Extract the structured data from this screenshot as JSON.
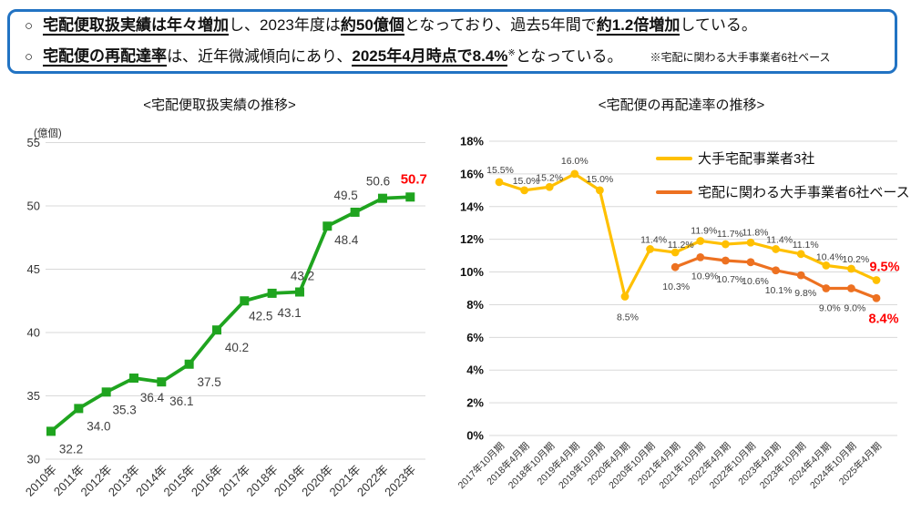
{
  "summary": {
    "bullet": "○",
    "line1_segments": [
      {
        "t": "宅配便取扱実績は年々増加",
        "em": true
      },
      {
        "t": "し、2023年度は",
        "em": false
      },
      {
        "t": "約50億個",
        "em": true
      },
      {
        "t": "となっており、過去5年間で",
        "em": false
      },
      {
        "t": "約1.2倍増加",
        "em": true
      },
      {
        "t": "している。",
        "em": false
      }
    ],
    "line2_segments": [
      {
        "t": "宅配便の再配達率",
        "em": true
      },
      {
        "t": "は、近年微減傾向にあり、",
        "em": false
      },
      {
        "t": "2025年4月時点で8.4%",
        "em": true
      },
      {
        "t": "※",
        "em": false,
        "sup": true
      },
      {
        "t": "となっている。",
        "em": false
      }
    ],
    "note": "※宅配に関わる大手事業者6社ベース"
  },
  "chart_data": [
    {
      "type": "line",
      "title": "<宅配便取扱実績の推移>",
      "y_axis_unit": "(億個)",
      "categories": [
        "2010年",
        "2011年",
        "2012年",
        "2013年",
        "2014年",
        "2015年",
        "2016年",
        "2017年",
        "2018年",
        "2019年",
        "2020年",
        "2021年",
        "2022年",
        "2023年"
      ],
      "series": [
        {
          "color": "#1FA41F",
          "marker": "square",
          "values": [
            32.2,
            34.0,
            35.3,
            36.4,
            36.1,
            37.5,
            40.2,
            42.5,
            43.1,
            43.2,
            48.4,
            49.5,
            50.6,
            50.7
          ]
        }
      ],
      "ylim": [
        30,
        55
      ],
      "ytick_step": 5,
      "ytick_suffix": "",
      "grid": true,
      "x_tick_rotation": -45,
      "data_label_color": "#404040",
      "highlight_last_color": "#FF0000"
    },
    {
      "type": "line",
      "title": "<宅配便の再配達率の推移>",
      "y_axis_unit": "",
      "categories": [
        "2017年10月期",
        "2018年4月期",
        "2018年10月期",
        "2019年4月期",
        "2019年10月期",
        "2020年4月期",
        "2020年10月期",
        "2021年4月期",
        "2021年10月期",
        "2022年4月期",
        "2022年10月期",
        "2023年4月期",
        "2023年10月期",
        "2024年4月期",
        "2024年10月期",
        "2025年4月期"
      ],
      "series": [
        {
          "name": "大手宅配事業者3社",
          "color": "#FFC000",
          "marker": "circle",
          "start_index": 0,
          "values": [
            15.5,
            15.0,
            15.2,
            16.0,
            15.0,
            8.5,
            11.4,
            11.2,
            11.9,
            11.7,
            11.8,
            11.4,
            11.1,
            10.4,
            10.2,
            9.5
          ]
        },
        {
          "name": "宅配に関わる大手事業者6社ベース",
          "color": "#ED7121",
          "marker": "circle",
          "start_index": 7,
          "values": [
            10.3,
            10.9,
            10.7,
            10.6,
            10.1,
            9.8,
            9.0,
            9.0,
            8.4
          ]
        }
      ],
      "ylim": [
        0,
        18
      ],
      "ytick_step": 2,
      "ytick_suffix": "%",
      "grid": true,
      "legend_position": "top-right",
      "x_tick_rotation": -45,
      "data_label_color": "#404040",
      "highlight_last_color": "#FF0000"
    }
  ]
}
